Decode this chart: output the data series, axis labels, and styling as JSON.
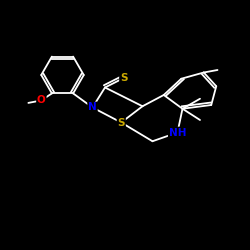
{
  "background_color": "#000000",
  "bond_color": "#ffffff",
  "atom_colors": {
    "O": "#ff0000",
    "S_thione": "#ccaa00",
    "S_ring": "#ccaa00",
    "N": "#0000ff",
    "NH": "#0000ff"
  },
  "figsize": [
    2.5,
    2.5
  ],
  "dpi": 100
}
